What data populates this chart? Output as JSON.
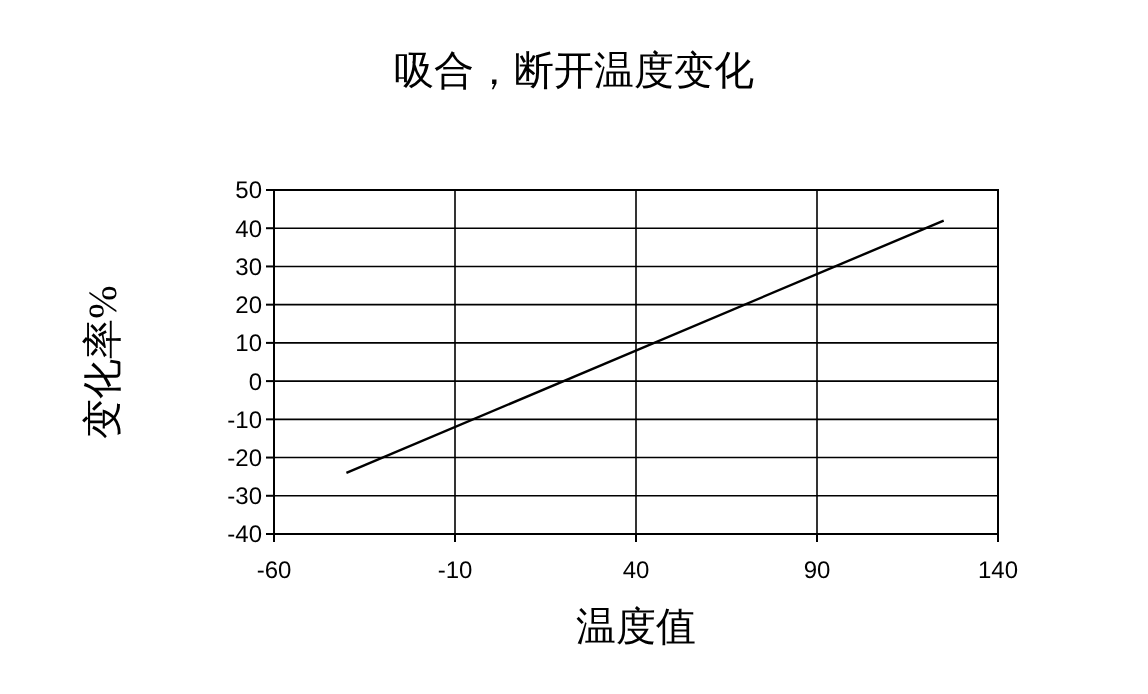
{
  "chart_data": {
    "type": "line",
    "title": "吸合，断开温度变化",
    "xlabel": "温度值",
    "ylabel": "变化率%",
    "series": [
      {
        "color": "#000000",
        "x": [
          -40,
          125
        ],
        "values": [
          -24,
          42
        ]
      }
    ],
    "xlim": [
      -60,
      140
    ],
    "xticks": [
      -60,
      -10,
      40,
      90,
      140
    ],
    "ylim": [
      -40,
      50
    ],
    "yticks": [
      -40,
      -30,
      -20,
      -10,
      0,
      10,
      20,
      30,
      40,
      50
    ],
    "grid": true,
    "marker": "none",
    "line_style": "solid"
  }
}
